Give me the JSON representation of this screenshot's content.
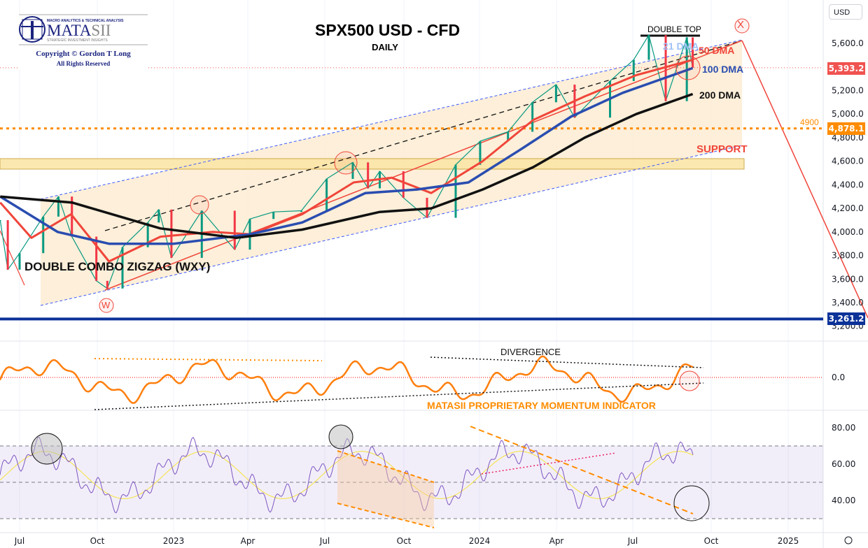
{
  "header": {
    "title": "SPX500 USD - CFD",
    "subtitle": "DAILY",
    "currency_button": "USD"
  },
  "logo": {
    "top": "MACRO ANALYTICS & TECHNICAL ANALYSIS",
    "name": "MATASII",
    "tagline": "STRATEGIC INVESTMENT INSIGHTS",
    "copyright": "Copyright © Gordon T Long",
    "rights": "All Rights Reserved"
  },
  "annotations": {
    "double_top": "DOUBLE TOP",
    "dma21": "21 DMA",
    "dma50": "50 DMA",
    "dma100": "100 DMA",
    "dma200": "200 DMA",
    "support": "SUPPORT",
    "level4900": "4900",
    "wave_x": "X",
    "wave_w": "W",
    "pattern": "DOUBLE COMBO ZIGZAG (WXY)",
    "divergence": "DIVERGENCE",
    "momentum_label": "MATASII PROPRIETARY MOMENTUM INDICATOR"
  },
  "price_tags": {
    "last": "5,393.2",
    "level": "4,878.1",
    "low": "3,261.2"
  },
  "colors": {
    "price_up": "#089981",
    "price_down": "#f23645",
    "dma21": "#5b8def",
    "dma50": "#f0453a",
    "dma100": "#2a4db0",
    "dma200": "#111111",
    "momentum": "#ff7f0e",
    "rsi": "#7e57c2",
    "rsi_ma": "#f5e23b",
    "channel_fill": "#fdebd0",
    "last_tag": "#f05350",
    "level_tag": "#ff8c00",
    "low_tag": "#0c3299"
  },
  "chart_data": [
    {
      "type": "line",
      "title": "SPX500 USD - CFD",
      "ylim": [
        3100,
        5800
      ],
      "y_ticks": [
        "5,600.0",
        "5,200.0",
        "5,000.0",
        "4,800.0",
        "4,600.0",
        "4,400.0",
        "4,200.0",
        "4,000.0",
        "3,800.0",
        "3,600.0",
        "3,400.0",
        "3,200.0"
      ],
      "x_ticks": [
        "Jul",
        "Oct",
        "2023",
        "Apr",
        "Jul",
        "Oct",
        "2024",
        "Apr",
        "Jul",
        "Oct",
        "2025"
      ],
      "series": [
        {
          "name": "price",
          "points": [
            [
              "2022-06-08",
              4100
            ],
            [
              "2022-06-17",
              3680
            ],
            [
              "2022-07-01",
              3820
            ],
            [
              "2022-07-29",
              4130
            ],
            [
              "2022-08-16",
              4300
            ],
            [
              "2022-09-01",
              3960
            ],
            [
              "2022-09-30",
              3585
            ],
            [
              "2022-10-13",
              3520
            ],
            [
              "2022-10-31",
              3870
            ],
            [
              "2022-11-30",
              4080
            ],
            [
              "2022-12-13",
              4190
            ],
            [
              "2022-12-28",
              3780
            ],
            [
              "2023-02-02",
              4180
            ],
            [
              "2023-03-13",
              3850
            ],
            [
              "2023-03-31",
              4110
            ],
            [
              "2023-04-28",
              4170
            ],
            [
              "2023-05-31",
              4180
            ],
            [
              "2023-06-30",
              4450
            ],
            [
              "2023-07-31",
              4590
            ],
            [
              "2023-08-18",
              4370
            ],
            [
              "2023-09-01",
              4515
            ],
            [
              "2023-09-29",
              4290
            ],
            [
              "2023-10-27",
              4120
            ],
            [
              "2023-11-30",
              4570
            ],
            [
              "2023-12-29",
              4770
            ],
            [
              "2024-01-31",
              4850
            ],
            [
              "2024-02-29",
              5100
            ],
            [
              "2024-03-28",
              5250
            ],
            [
              "2024-04-19",
              4970
            ],
            [
              "2024-05-31",
              5280
            ],
            [
              "2024-06-28",
              5460
            ],
            [
              "2024-07-16",
              5670
            ],
            [
              "2024-08-05",
              5110
            ],
            [
              "2024-08-30",
              5650
            ],
            [
              "2024-09-06",
              5393
            ]
          ]
        },
        {
          "name": "50 DMA",
          "points": [
            [
              "2022-06-08",
              4250
            ],
            [
              "2022-07-15",
              3950
            ],
            [
              "2022-08-31",
              4150
            ],
            [
              "2022-10-15",
              3750
            ],
            [
              "2022-12-15",
              3960
            ],
            [
              "2023-02-15",
              4000
            ],
            [
              "2023-04-01",
              3980
            ],
            [
              "2023-06-01",
              4150
            ],
            [
              "2023-08-01",
              4420
            ],
            [
              "2023-09-15",
              4460
            ],
            [
              "2023-11-01",
              4330
            ],
            [
              "2024-01-01",
              4600
            ],
            [
              "2024-03-01",
              4950
            ],
            [
              "2024-05-01",
              5150
            ],
            [
              "2024-07-01",
              5330
            ],
            [
              "2024-09-06",
              5460
            ]
          ]
        },
        {
          "name": "100 DMA",
          "points": [
            [
              "2022-06-08",
              4300
            ],
            [
              "2022-08-15",
              4000
            ],
            [
              "2022-10-15",
              3900
            ],
            [
              "2022-12-31",
              3900
            ],
            [
              "2023-03-31",
              3980
            ],
            [
              "2023-06-01",
              4080
            ],
            [
              "2023-08-15",
              4330
            ],
            [
              "2023-10-15",
              4360
            ],
            [
              "2023-12-15",
              4420
            ],
            [
              "2024-02-15",
              4700
            ],
            [
              "2024-04-15",
              4980
            ],
            [
              "2024-06-15",
              5180
            ],
            [
              "2024-09-06",
              5390
            ]
          ]
        },
        {
          "name": "200 DMA",
          "points": [
            [
              "2022-06-08",
              4300
            ],
            [
              "2022-09-01",
              4250
            ],
            [
              "2022-12-15",
              4030
            ],
            [
              "2023-03-15",
              3950
            ],
            [
              "2023-06-01",
              4020
            ],
            [
              "2023-09-01",
              4170
            ],
            [
              "2023-11-01",
              4200
            ],
            [
              "2024-01-01",
              4360
            ],
            [
              "2024-03-01",
              4550
            ],
            [
              "2024-05-01",
              4800
            ],
            [
              "2024-07-01",
              5000
            ],
            [
              "2024-09-06",
              5170
            ]
          ]
        }
      ],
      "levels": [
        3261.2,
        4878.1,
        5393.2,
        4900
      ],
      "support_zone": [
        4533,
        4622
      ]
    },
    {
      "type": "line",
      "title": "MATASII PROPRIETARY MOMENTUM INDICATOR",
      "y_ticks": [
        "0.0"
      ]
    },
    {
      "type": "line",
      "title": "RSI",
      "ylim": [
        22,
        88
      ],
      "y_ticks": [
        "80.00",
        "60.00",
        "40.00"
      ],
      "bands": [
        30,
        50,
        70
      ]
    }
  ]
}
